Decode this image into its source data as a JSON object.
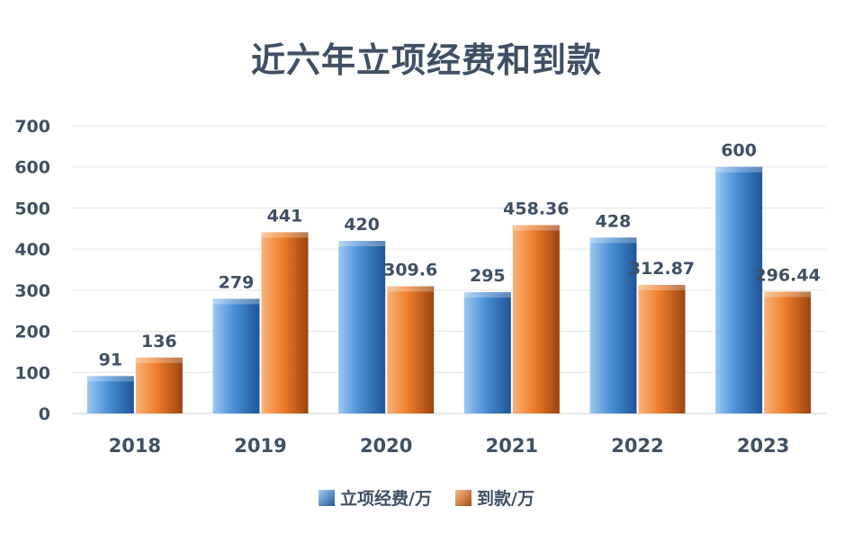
{
  "chart_data": {
    "type": "bar",
    "title": "近六年立项经费和到款",
    "categories": [
      "2018",
      "2019",
      "2020",
      "2021",
      "2022",
      "2023"
    ],
    "series": [
      {
        "name": "立项经费/万",
        "values": [
          91,
          279,
          420,
          295,
          428,
          600
        ],
        "labels": [
          "91",
          "279",
          "420",
          "295",
          "428",
          "600"
        ],
        "color": "#4a8fd6"
      },
      {
        "name": "到款/万",
        "values": [
          136,
          441,
          309.6,
          458.36,
          312.87,
          296.44
        ],
        "labels": [
          "136",
          "441",
          "309.6",
          "458.36",
          "312.87",
          "296.44"
        ],
        "color": "#ef7d2b"
      }
    ],
    "yticks": [
      "0",
      "100",
      "200",
      "300",
      "400",
      "500",
      "600",
      "700"
    ],
    "ylim": [
      0,
      700
    ],
    "grid": true,
    "legend": "bottom"
  }
}
